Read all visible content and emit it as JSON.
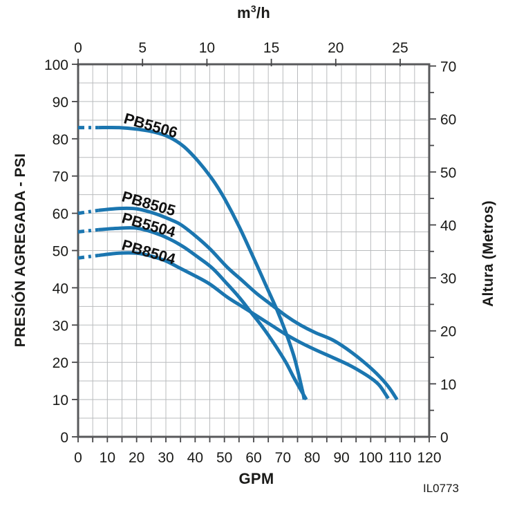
{
  "footer": {
    "code": "IL0773"
  },
  "chart_data": {
    "type": "line",
    "top_axis_label": {
      "base": "m",
      "sup": "3",
      "rest": "/h"
    },
    "xlabel_bottom": "GPM",
    "ylabel_left": "PRESIÓN AGREGADA - PSI",
    "ylabel_right": "Altura (Metros)",
    "x_bottom": {
      "unit": "GPM",
      "min": 0,
      "max": 120,
      "ticks": [
        0,
        10,
        20,
        30,
        40,
        50,
        60,
        70,
        80,
        90,
        100,
        110,
        120
      ],
      "minor_tick_step": 5
    },
    "x_top": {
      "unit": "m3/h",
      "ticks": [
        0,
        5,
        10,
        15,
        20,
        25
      ],
      "gpm_per_unit": 4.403
    },
    "y_left": {
      "unit": "PSI",
      "min": 0,
      "max": 100,
      "ticks": [
        0,
        10,
        20,
        30,
        40,
        50,
        60,
        70,
        80,
        90,
        100
      ]
    },
    "y_right": {
      "unit": "Metros",
      "min": 0,
      "max": 70,
      "ticks": [
        0,
        10,
        20,
        30,
        40,
        50,
        60,
        70
      ],
      "minor_tick_step": 5,
      "psi_per_metro": 1.4219
    },
    "grid": {
      "x_step_gpm": 5,
      "y_step_psi": 5,
      "color": "#b9bbbd"
    },
    "frame_color": "#58595b",
    "tick_color": "#454547",
    "text_color": "#1a1a18",
    "curve_color": "#1b76b0",
    "curve_width": 5,
    "dash_until_gpm": 7,
    "series": [
      {
        "name": "PB5506",
        "label": {
          "gpm": 24.8,
          "psi": 83.4,
          "angle_deg": 16
        },
        "points": [
          [
            0,
            83
          ],
          [
            7,
            83
          ],
          [
            14,
            83
          ],
          [
            20,
            82.6
          ],
          [
            26,
            81.8
          ],
          [
            31,
            80.5
          ],
          [
            36,
            78
          ],
          [
            41,
            74
          ],
          [
            46,
            69
          ],
          [
            50,
            64
          ],
          [
            55,
            56.5
          ],
          [
            60,
            48
          ],
          [
            64,
            41
          ],
          [
            68,
            34
          ],
          [
            71,
            28
          ],
          [
            74,
            21
          ],
          [
            76.5,
            13
          ],
          [
            77.3,
            10
          ]
        ]
      },
      {
        "name": "PB8505",
        "label": {
          "gpm": 24.2,
          "psi": 62.6,
          "angle_deg": 16
        },
        "points": [
          [
            0,
            60
          ],
          [
            7,
            60.8
          ],
          [
            14,
            61.3
          ],
          [
            20,
            61.2
          ],
          [
            26,
            60
          ],
          [
            31,
            58.5
          ],
          [
            35,
            57
          ],
          [
            40,
            54
          ],
          [
            45,
            50.5
          ],
          [
            51,
            45.5
          ],
          [
            56,
            42
          ],
          [
            61,
            38.5
          ],
          [
            66,
            35.5
          ],
          [
            71,
            32.5
          ],
          [
            76,
            30
          ],
          [
            81,
            28
          ],
          [
            87,
            26
          ],
          [
            92,
            23.5
          ],
          [
            97,
            20.5
          ],
          [
            102,
            17
          ],
          [
            106,
            13.5
          ],
          [
            109,
            10
          ]
        ]
      },
      {
        "name": "PB5504",
        "label": {
          "gpm": 24.0,
          "psi": 56.7,
          "angle_deg": 16
        },
        "points": [
          [
            0,
            55
          ],
          [
            7,
            55.6
          ],
          [
            14,
            56
          ],
          [
            20,
            56
          ],
          [
            26,
            54.8
          ],
          [
            31,
            53.2
          ],
          [
            36,
            51
          ],
          [
            41,
            48.2
          ],
          [
            46,
            45.2
          ],
          [
            51,
            41
          ],
          [
            55,
            37.5
          ],
          [
            59,
            33.5
          ],
          [
            63,
            29.5
          ],
          [
            67,
            25
          ],
          [
            71,
            20
          ],
          [
            74,
            15.5
          ],
          [
            78,
            10
          ]
        ]
      },
      {
        "name": "PB8504",
        "label": {
          "gpm": 24.0,
          "psi": 49.5,
          "angle_deg": 16
        },
        "points": [
          [
            0,
            48
          ],
          [
            7,
            48.7
          ],
          [
            14,
            49.3
          ],
          [
            20,
            49.3
          ],
          [
            25,
            48.5
          ],
          [
            30,
            47.2
          ],
          [
            35,
            45.2
          ],
          [
            40,
            43.2
          ],
          [
            45,
            41
          ],
          [
            51,
            37.5
          ],
          [
            56,
            35
          ],
          [
            61,
            32.5
          ],
          [
            66,
            30
          ],
          [
            71,
            27.5
          ],
          [
            76,
            25.3
          ],
          [
            81,
            23.4
          ],
          [
            87,
            21.3
          ],
          [
            92,
            19.5
          ],
          [
            96,
            17.8
          ],
          [
            100,
            15.8
          ],
          [
            103,
            13.8
          ],
          [
            106,
            10.3
          ]
        ]
      }
    ]
  }
}
